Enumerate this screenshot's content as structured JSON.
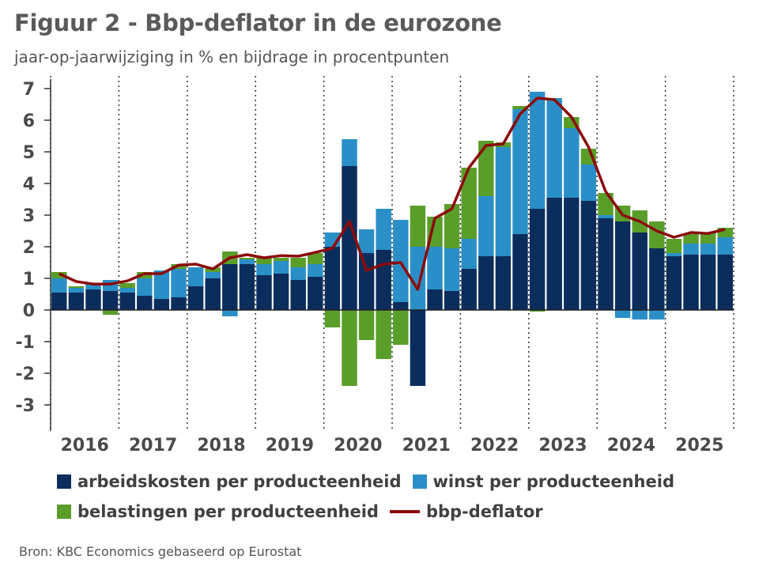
{
  "title": "Figuur 2 - Bbp-deflator in de eurozone",
  "subtitle": "jaar-op-jaarwijziging in % en bijdrage in procentpunten",
  "source": "Bron: KBC Economics gebaseerd op Eurostat",
  "chart_data": {
    "type": "bar",
    "stacked": true,
    "ylim": [
      -3,
      7
    ],
    "yticks": [
      "7",
      "6",
      "5",
      "4",
      "3",
      "2",
      "1",
      "0",
      "-1",
      "-2",
      "-3"
    ],
    "ytick_values": [
      7,
      6,
      5,
      4,
      3,
      2,
      1,
      0,
      -1,
      -2,
      -3
    ],
    "year_labels": [
      "2016",
      "2017",
      "2018",
      "2019",
      "2020",
      "2021",
      "2022",
      "2023",
      "2024",
      "2025"
    ],
    "categories": [
      "2016Q1",
      "2016Q2",
      "2016Q3",
      "2016Q4",
      "2017Q1",
      "2017Q2",
      "2017Q3",
      "2017Q4",
      "2018Q1",
      "2018Q2",
      "2018Q3",
      "2018Q4",
      "2019Q1",
      "2019Q2",
      "2019Q3",
      "2019Q4",
      "2020Q1",
      "2020Q2",
      "2020Q3",
      "2020Q4",
      "2021Q1",
      "2021Q2",
      "2021Q3",
      "2021Q4",
      "2022Q1",
      "2022Q2",
      "2022Q3",
      "2022Q4",
      "2023Q1",
      "2023Q2",
      "2023Q3",
      "2023Q4",
      "2024Q1",
      "2024Q2",
      "2024Q3",
      "2024Q4",
      "2025Q1",
      "2025Q2",
      "2025Q3",
      "2025Q4"
    ],
    "grid": "vertical dotted at year boundaries",
    "legend_position": "bottom",
    "series": [
      {
        "name": "arbeidskosten per producteenheid",
        "kind": "bar",
        "color": "#0b2d5c",
        "values": [
          0.55,
          0.55,
          0.65,
          0.6,
          0.55,
          0.45,
          0.35,
          0.4,
          0.75,
          1.0,
          1.45,
          1.45,
          1.1,
          1.15,
          0.95,
          1.05,
          2.0,
          4.55,
          1.8,
          1.9,
          0.25,
          -2.4,
          0.65,
          0.6,
          1.3,
          1.7,
          1.7,
          2.4,
          3.2,
          3.55,
          3.55,
          3.45,
          2.9,
          2.8,
          2.45,
          1.95,
          1.7,
          1.75,
          1.75,
          1.75
        ]
      },
      {
        "name": "winst per producteenheid",
        "kind": "bar",
        "color": "#2a8fc7",
        "values": [
          0.45,
          0.15,
          0.15,
          0.35,
          0.15,
          0.55,
          0.9,
          0.9,
          0.6,
          0.2,
          -0.2,
          0.15,
          0.35,
          0.4,
          0.4,
          0.4,
          0.45,
          0.85,
          0.75,
          1.3,
          2.6,
          2.0,
          1.35,
          1.35,
          0.95,
          1.9,
          3.45,
          3.95,
          3.7,
          3.15,
          2.2,
          1.15,
          0.1,
          -0.25,
          -0.3,
          -0.3,
          0.1,
          0.35,
          0.35,
          0.55
        ]
      },
      {
        "name": "belastingen per producteenheid",
        "kind": "bar",
        "color": "#5a9e2a",
        "values": [
          0.2,
          0.05,
          0.05,
          -0.15,
          0.15,
          0.2,
          0.0,
          0.15,
          0.0,
          0.15,
          0.4,
          0.05,
          0.2,
          0.1,
          0.3,
          0.35,
          -0.55,
          -2.4,
          -0.95,
          -1.55,
          -1.1,
          1.3,
          0.95,
          1.4,
          2.25,
          1.75,
          0.15,
          0.1,
          -0.05,
          0.0,
          0.35,
          0.5,
          0.7,
          0.5,
          0.7,
          0.85,
          0.45,
          0.3,
          0.35,
          0.3
        ]
      },
      {
        "name": "bbp-deflator",
        "kind": "line",
        "color": "#8b0a0a",
        "values": [
          1.15,
          0.9,
          0.82,
          0.82,
          0.92,
          1.15,
          1.15,
          1.42,
          1.45,
          1.3,
          1.65,
          1.75,
          1.65,
          1.72,
          1.7,
          1.82,
          1.95,
          2.8,
          1.25,
          1.45,
          1.5,
          0.65,
          2.9,
          3.2,
          4.5,
          5.2,
          5.25,
          6.2,
          6.7,
          6.65,
          6.1,
          5.15,
          3.75,
          3.0,
          2.8,
          2.5,
          2.3,
          2.45,
          2.42,
          2.55
        ]
      }
    ]
  }
}
